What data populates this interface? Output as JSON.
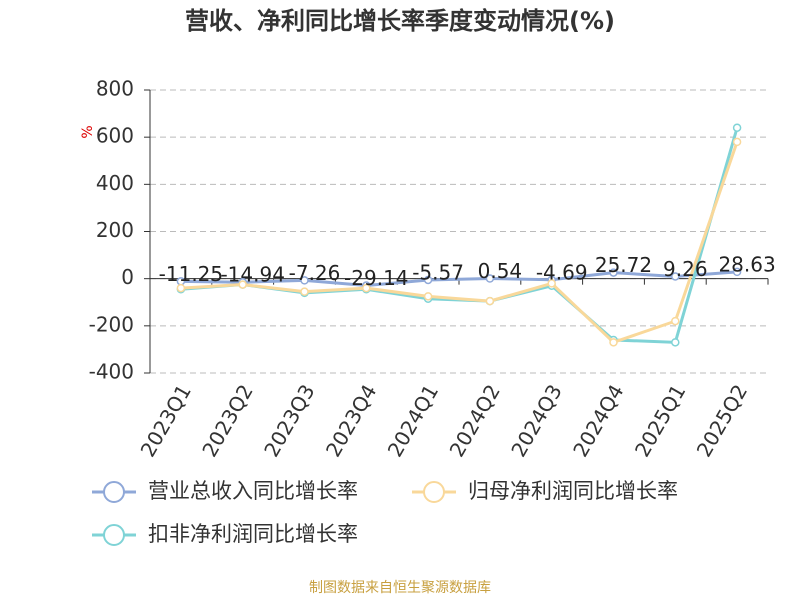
{
  "chart_data": {
    "type": "line",
    "title": "营收、净利同比增长率季度变动情况(%)",
    "y_label": "%",
    "categories": [
      "2023Q1",
      "2023Q2",
      "2023Q3",
      "2023Q4",
      "2024Q1",
      "2024Q2",
      "2024Q3",
      "2024Q4",
      "2025Q1",
      "2025Q2"
    ],
    "series": [
      {
        "name": "营业总收入同比增长率",
        "color": "#8fa8d8",
        "values": [
          -11.25,
          -14.94,
          -7.26,
          -29.14,
          -5.57,
          0.54,
          -4.69,
          25.72,
          9.26,
          28.63
        ],
        "show_labels": true
      },
      {
        "name": "归母净利润同比增长率",
        "color": "#f9d89a",
        "values": [
          -40,
          -25,
          -55,
          -40,
          -75,
          -95,
          -20,
          -270,
          -180,
          580
        ],
        "show_labels": false
      },
      {
        "name": "扣非净利润同比增长率",
        "color": "#7fd3d6",
        "values": [
          -45,
          -25,
          -60,
          -45,
          -85,
          -95,
          -30,
          -260,
          -270,
          640
        ],
        "show_labels": false
      }
    ],
    "ylim": [
      -400,
      800
    ],
    "yticks": [
      -400,
      -200,
      0,
      200,
      400,
      600,
      800
    ],
    "grid": true,
    "source": "制图数据来自恒生聚源数据库"
  }
}
